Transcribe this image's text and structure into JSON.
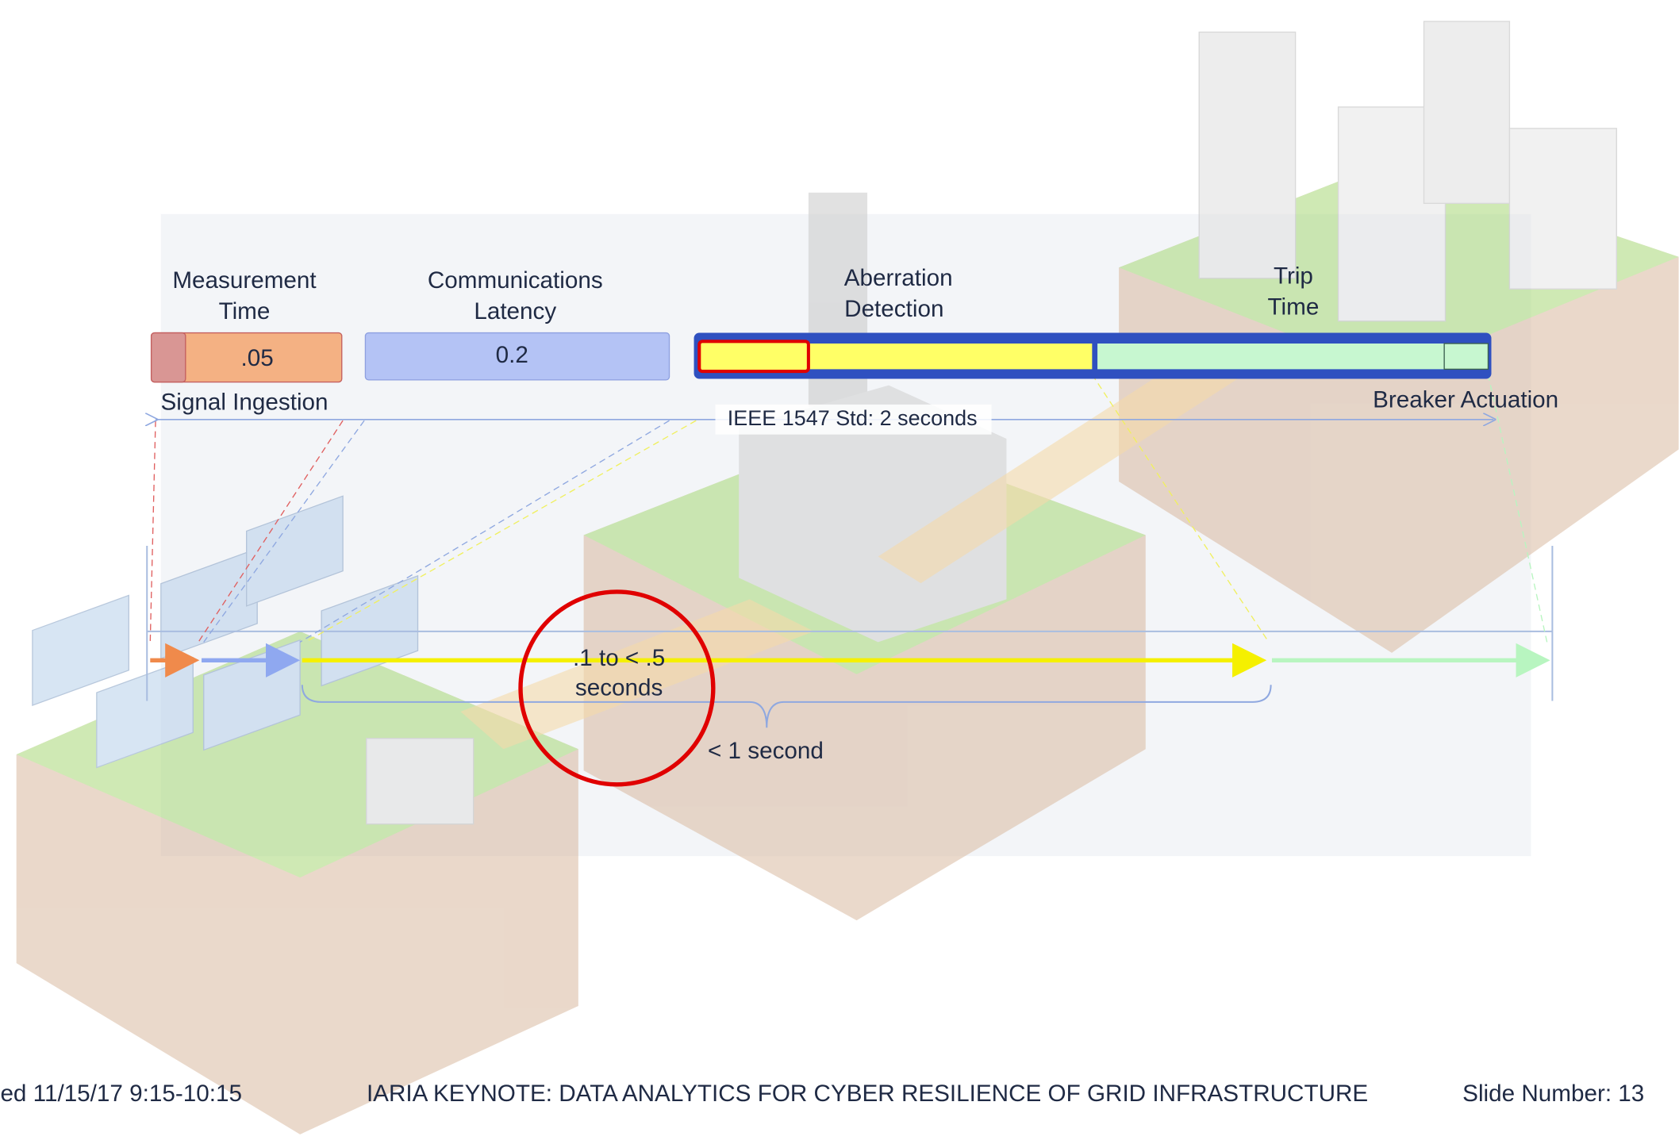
{
  "labels": {
    "measurement_time": [
      "Measurement",
      "Time"
    ],
    "measurement_value": ".05",
    "signal_ingestion": "Signal Ingestion",
    "communications_latency": [
      "Communications",
      "Latency"
    ],
    "communications_value": "0.2",
    "aberration_detection": [
      "Aberration",
      "Detection"
    ],
    "trip_time": [
      "Trip",
      "Time"
    ],
    "breaker_actuation": "Breaker Actuation",
    "ieee_standard": "IEEE 1547 Std: 2 seconds",
    "detection_window": [
      ".1 to < .5",
      "seconds"
    ],
    "total_window": "< 1 second"
  },
  "footer": {
    "date": "ed 11/15/17 9:15-10:15",
    "title": "IARIA KEYNOTE: DATA ANALYTICS FOR CYBER RESILIENCE OF GRID INFRASTRUCTURE",
    "slide_number": "Slide Number: 13"
  }
}
